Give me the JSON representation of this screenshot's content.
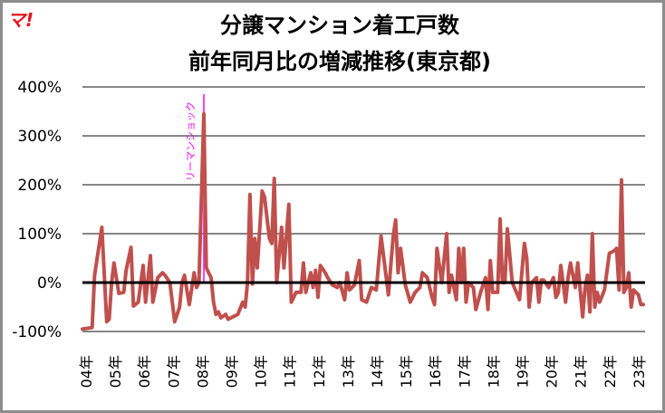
{
  "logo_text": "マ!",
  "chart_data": {
    "type": "line",
    "title": [
      "分譲マンション着工戸数",
      "前年同月比の増減推移(東京都)"
    ],
    "xlabel": "",
    "ylabel": "",
    "ylim": [
      -100,
      400
    ],
    "yticks": [
      -100,
      0,
      100,
      200,
      300,
      400
    ],
    "ytick_labels": [
      "-100%",
      "0%",
      "100%",
      "200%",
      "300%",
      "400%"
    ],
    "xtick_labels": [
      "04年",
      "05年",
      "06年",
      "07年",
      "08年",
      "09年",
      "10年",
      "11年",
      "12年",
      "13年",
      "14年",
      "15年",
      "16年",
      "17年",
      "18年",
      "19年",
      "20年",
      "21年",
      "22年",
      "23年"
    ],
    "grid": true,
    "colors": {
      "line": "#c0504d",
      "grid": "#868686",
      "zero_line": "#000000",
      "annotation": "#ff00ff"
    },
    "annotation": {
      "text": "リーマンショック",
      "x": "2008-03"
    },
    "series": [
      {
        "x": [
          "2004-01",
          "2004-05",
          "2004-06",
          "2004-09",
          "2004-11",
          "2004-12",
          "2005-01",
          "2005-02",
          "2005-04",
          "2005-06",
          "2005-07",
          "2005-09",
          "2005-10",
          "2005-12",
          "2006-02",
          "2006-03",
          "2006-05",
          "2006-06",
          "2006-08",
          "2006-10",
          "2006-11",
          "2007-01",
          "2007-03",
          "2007-05",
          "2007-06",
          "2007-07",
          "2007-09",
          "2007-11",
          "2007-12",
          "2008-01",
          "2008-03",
          "2008-04",
          "2008-06",
          "2008-07",
          "2008-08",
          "2008-09",
          "2008-10",
          "2008-12",
          "2009-01",
          "2009-05",
          "2009-07",
          "2009-08",
          "2009-09",
          "2009-10",
          "2009-11",
          "2009-12",
          "2010-01",
          "2010-03",
          "2010-04",
          "2010-06",
          "2010-07",
          "2010-08",
          "2010-09",
          "2010-11",
          "2010-12",
          "2011-02",
          "2011-03",
          "2011-04",
          "2011-05",
          "2011-07",
          "2011-08",
          "2011-09",
          "2011-11",
          "2011-12",
          "2012-01",
          "2012-02",
          "2012-03",
          "2012-05",
          "2012-06",
          "2012-08",
          "2012-10",
          "2012-11",
          "2013-01",
          "2013-02",
          "2013-03",
          "2013-05",
          "2013-07",
          "2013-08",
          "2013-10",
          "2013-12",
          "2014-02",
          "2014-04",
          "2014-07",
          "2014-09",
          "2014-10",
          "2014-11",
          "2014-12",
          "2015-02",
          "2015-04",
          "2015-06",
          "2015-08",
          "2015-09",
          "2015-11",
          "2016-01",
          "2016-02",
          "2016-03",
          "2016-05",
          "2016-07",
          "2016-08",
          "2016-09",
          "2016-11",
          "2016-12",
          "2017-01",
          "2017-02",
          "2017-03",
          "2017-04",
          "2017-06",
          "2017-07",
          "2017-09",
          "2017-11",
          "2017-12",
          "2018-01",
          "2018-02",
          "2018-04",
          "2018-05",
          "2018-06",
          "2018-07",
          "2018-08",
          "2018-10",
          "2019-01",
          "2019-03",
          "2019-04",
          "2019-05",
          "2019-06",
          "2019-08",
          "2019-09",
          "2019-10",
          "2019-11",
          "2020-01",
          "2020-03",
          "2020-04",
          "2020-05",
          "2020-06",
          "2020-08",
          "2020-09",
          "2020-10",
          "2020-12",
          "2021-01",
          "2021-03",
          "2021-04",
          "2021-05",
          "2021-06",
          "2021-07",
          "2021-08",
          "2021-09",
          "2021-10",
          "2021-12",
          "2022-02",
          "2022-04",
          "2022-05",
          "2022-06",
          "2022-07",
          "2022-08",
          "2022-09",
          "2022-10",
          "2022-11",
          "2022-12",
          "2023-02",
          "2023-03",
          "2023-04"
        ],
        "values": [
          -95,
          -92,
          15,
          113,
          -80,
          -75,
          0,
          40,
          -22,
          -20,
          25,
          72,
          -48,
          -40,
          35,
          -40,
          55,
          -40,
          10,
          20,
          15,
          0,
          -80,
          -50,
          0,
          15,
          -45,
          20,
          -10,
          0,
          345,
          30,
          10,
          -40,
          -65,
          -60,
          -72,
          -65,
          -75,
          -65,
          -40,
          -50,
          0,
          180,
          -3,
          90,
          30,
          187,
          175,
          90,
          80,
          213,
          0,
          113,
          30,
          160,
          -40,
          -30,
          -20,
          -20,
          40,
          -20,
          20,
          -10,
          25,
          -30,
          35,
          20,
          10,
          -5,
          -10,
          0,
          -35,
          20,
          -15,
          -5,
          45,
          -35,
          -40,
          -10,
          -15,
          95,
          -25,
          95,
          128,
          20,
          70,
          -5,
          -40,
          -20,
          -10,
          20,
          10,
          -30,
          -45,
          70,
          0,
          100,
          -20,
          15,
          -35,
          70,
          0,
          70,
          -40,
          0,
          -10,
          -55,
          -20,
          10,
          -55,
          45,
          -20,
          -20,
          130,
          0,
          0,
          110,
          0,
          -35,
          80,
          50,
          -50,
          0,
          10,
          -40,
          5,
          5,
          -10,
          10,
          -30,
          -20,
          35,
          -40,
          10,
          40,
          -10,
          40,
          -70,
          -10,
          15,
          -60,
          100,
          -50,
          -20,
          -40,
          -15,
          60,
          65,
          70,
          -15,
          210,
          -20,
          -10,
          20,
          -50,
          -15,
          -25,
          -45,
          -45
        ]
      }
    ]
  }
}
